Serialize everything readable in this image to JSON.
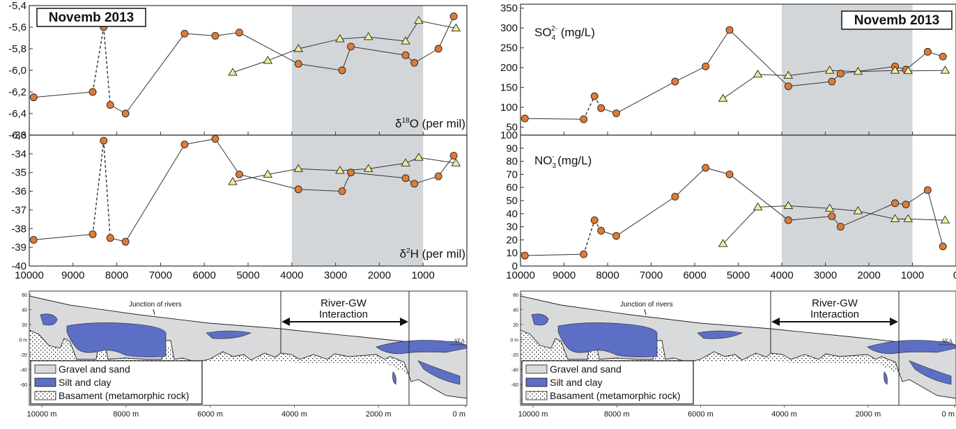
{
  "colors": {
    "shade": "#d3d6d9",
    "circle_fill": "#e07a36",
    "triangle_fill": "#ecec9a",
    "gravel": "#d9dadc",
    "silt": "#5c6fc4",
    "line": "#333333"
  },
  "chart_data": [
    {
      "id": "d18O",
      "type": "scatter",
      "label": "δ18O (per mil)",
      "ylim": [
        -6.6,
        -5.4
      ],
      "yticks": [
        -6.6,
        -6.4,
        -6.2,
        -6.0,
        -5.8,
        -5.6,
        -5.4
      ],
      "ytick_labels": [
        "-6,6",
        "-6,4",
        "-6,2",
        "-6,0",
        "-5,8",
        "-5,6",
        "-5,4"
      ],
      "series": [
        {
          "marker": "circle",
          "x": [
            9900,
            8550,
            8300,
            8150,
            7800,
            6450,
            5750,
            5200,
            3850,
            2850,
            2650,
            1400,
            1200,
            650,
            300
          ],
          "y": [
            -6.25,
            -6.2,
            -5.6,
            -6.32,
            -6.4,
            -5.66,
            -5.68,
            -5.65,
            -5.94,
            -6.0,
            -5.78,
            -5.86,
            -5.93,
            -5.8,
            -5.5
          ]
        },
        {
          "marker": "triangle",
          "x": [
            5350,
            4550,
            3850,
            2900,
            2250,
            1400,
            1100,
            250
          ],
          "y": [
            -6.02,
            -5.91,
            -5.8,
            -5.71,
            -5.69,
            -5.73,
            -5.54,
            -5.61
          ]
        }
      ]
    },
    {
      "id": "d2H",
      "type": "scatter",
      "label": "δ2H (per mil)",
      "ylim": [
        -40,
        -33
      ],
      "yticks": [
        -40,
        -39,
        -38,
        -37,
        -36,
        -35,
        -34,
        -33
      ],
      "ytick_labels": [
        "-40",
        "-39",
        "-38",
        "-37",
        "-36",
        "-35",
        "-34",
        "-33"
      ],
      "series": [
        {
          "marker": "circle",
          "x": [
            9900,
            8550,
            8300,
            8150,
            7800,
            6450,
            5750,
            5200,
            3850,
            2850,
            2650,
            1400,
            1200,
            650,
            300
          ],
          "y": [
            -38.6,
            -38.3,
            -33.3,
            -38.5,
            -38.7,
            -33.5,
            -33.2,
            -35.1,
            -35.9,
            -36.0,
            -35.0,
            -35.3,
            -35.6,
            -35.2,
            -34.1
          ]
        },
        {
          "marker": "triangle",
          "x": [
            5350,
            4550,
            3850,
            2900,
            2250,
            1400,
            1100,
            250
          ],
          "y": [
            -35.5,
            -35.1,
            -34.8,
            -34.9,
            -34.8,
            -34.5,
            -34.2,
            -34.5
          ]
        }
      ]
    },
    {
      "id": "SO4",
      "type": "scatter",
      "label": "SO42- (mg/L)",
      "ylim": [
        30,
        360
      ],
      "yticks": [
        50,
        100,
        150,
        200,
        250,
        300,
        350
      ],
      "ytick_labels": [
        "50",
        "100",
        "150",
        "200",
        "250",
        "300",
        "350"
      ],
      "series": [
        {
          "marker": "circle",
          "x": [
            9900,
            8550,
            8300,
            8150,
            7800,
            6450,
            5750,
            5200,
            3850,
            2850,
            2650,
            1400,
            1150,
            650,
            300
          ],
          "y": [
            72,
            70,
            128,
            98,
            85,
            165,
            203,
            295,
            153,
            165,
            185,
            203,
            195,
            240,
            228
          ]
        },
        {
          "marker": "triangle",
          "x": [
            5350,
            4550,
            3850,
            2900,
            2250,
            1400,
            1100,
            250
          ],
          "y": [
            122,
            183,
            180,
            193,
            190,
            193,
            192,
            193
          ]
        }
      ]
    },
    {
      "id": "NO3",
      "type": "scatter",
      "label": "NO3- (mg/L)",
      "ylim": [
        0,
        100
      ],
      "yticks": [
        0,
        10,
        20,
        30,
        40,
        50,
        60,
        70,
        80,
        90,
        100
      ],
      "ytick_labels": [
        "0",
        "10",
        "20",
        "30",
        "40",
        "50",
        "60",
        "70",
        "80",
        "90",
        "100"
      ],
      "series": [
        {
          "marker": "circle",
          "x": [
            9900,
            8550,
            8300,
            8150,
            7800,
            6450,
            5750,
            5200,
            3850,
            2850,
            2650,
            1400,
            1150,
            650,
            300
          ],
          "y": [
            8,
            9,
            35,
            27,
            23,
            53,
            75,
            70,
            35,
            38,
            30,
            48,
            47,
            58,
            15
          ]
        },
        {
          "marker": "triangle",
          "x": [
            5350,
            4550,
            3850,
            2900,
            2250,
            1400,
            1100,
            250
          ],
          "y": [
            17,
            45,
            46,
            44,
            42,
            36,
            36,
            35
          ]
        }
      ]
    }
  ],
  "shaded_region": [
    4000,
    1000
  ],
  "x_axis": {
    "xlim": [
      10000,
      0
    ],
    "ticks": [
      10000,
      9000,
      8000,
      7000,
      6000,
      5000,
      4000,
      3000,
      2000,
      1000,
      0
    ],
    "left_tick_labels": [
      "10000",
      "9000",
      "8000",
      "7000",
      "6000",
      "5000",
      "4000",
      "3000",
      "2000",
      "1000"
    ],
    "right_tick_labels": [
      "10000",
      "9000",
      "8000",
      "7000",
      "6000",
      "5000",
      "4000",
      "3000",
      "2000",
      "1000",
      "0"
    ]
  },
  "left": {
    "title": "Novemb 2013",
    "o18_label": {
      "delta": "δ",
      "sup": "18",
      "main": "O (per mil)"
    },
    "h2_label": {
      "delta": "δ",
      "sup": "2",
      "main": "H (per mil)"
    }
  },
  "right": {
    "title": "Novemb 2013",
    "so4_label": {
      "main": "SO",
      "sub": "4",
      "sup": "2-",
      "unit": " (mg/L)"
    },
    "no3_label": {
      "main": "NO",
      "sub": "3",
      "sup": "-",
      "unit": " (mg/L)"
    }
  },
  "section": {
    "yticks": [
      "60",
      "40",
      "20",
      "0 m",
      "-20",
      "-40",
      "-60"
    ],
    "xtick_labels": [
      "10000 m",
      "8000 m",
      "6000 m",
      "4000 m",
      "2000 m",
      "0 m"
    ],
    "junction_label": "Junction of rivers",
    "interaction_label_1": "River-GW",
    "interaction_label_2": "Interaction",
    "sea_label": "SEA",
    "legend": [
      "Gravel and sand",
      "Silt and clay",
      "Basament (metamorphic rock)"
    ]
  }
}
